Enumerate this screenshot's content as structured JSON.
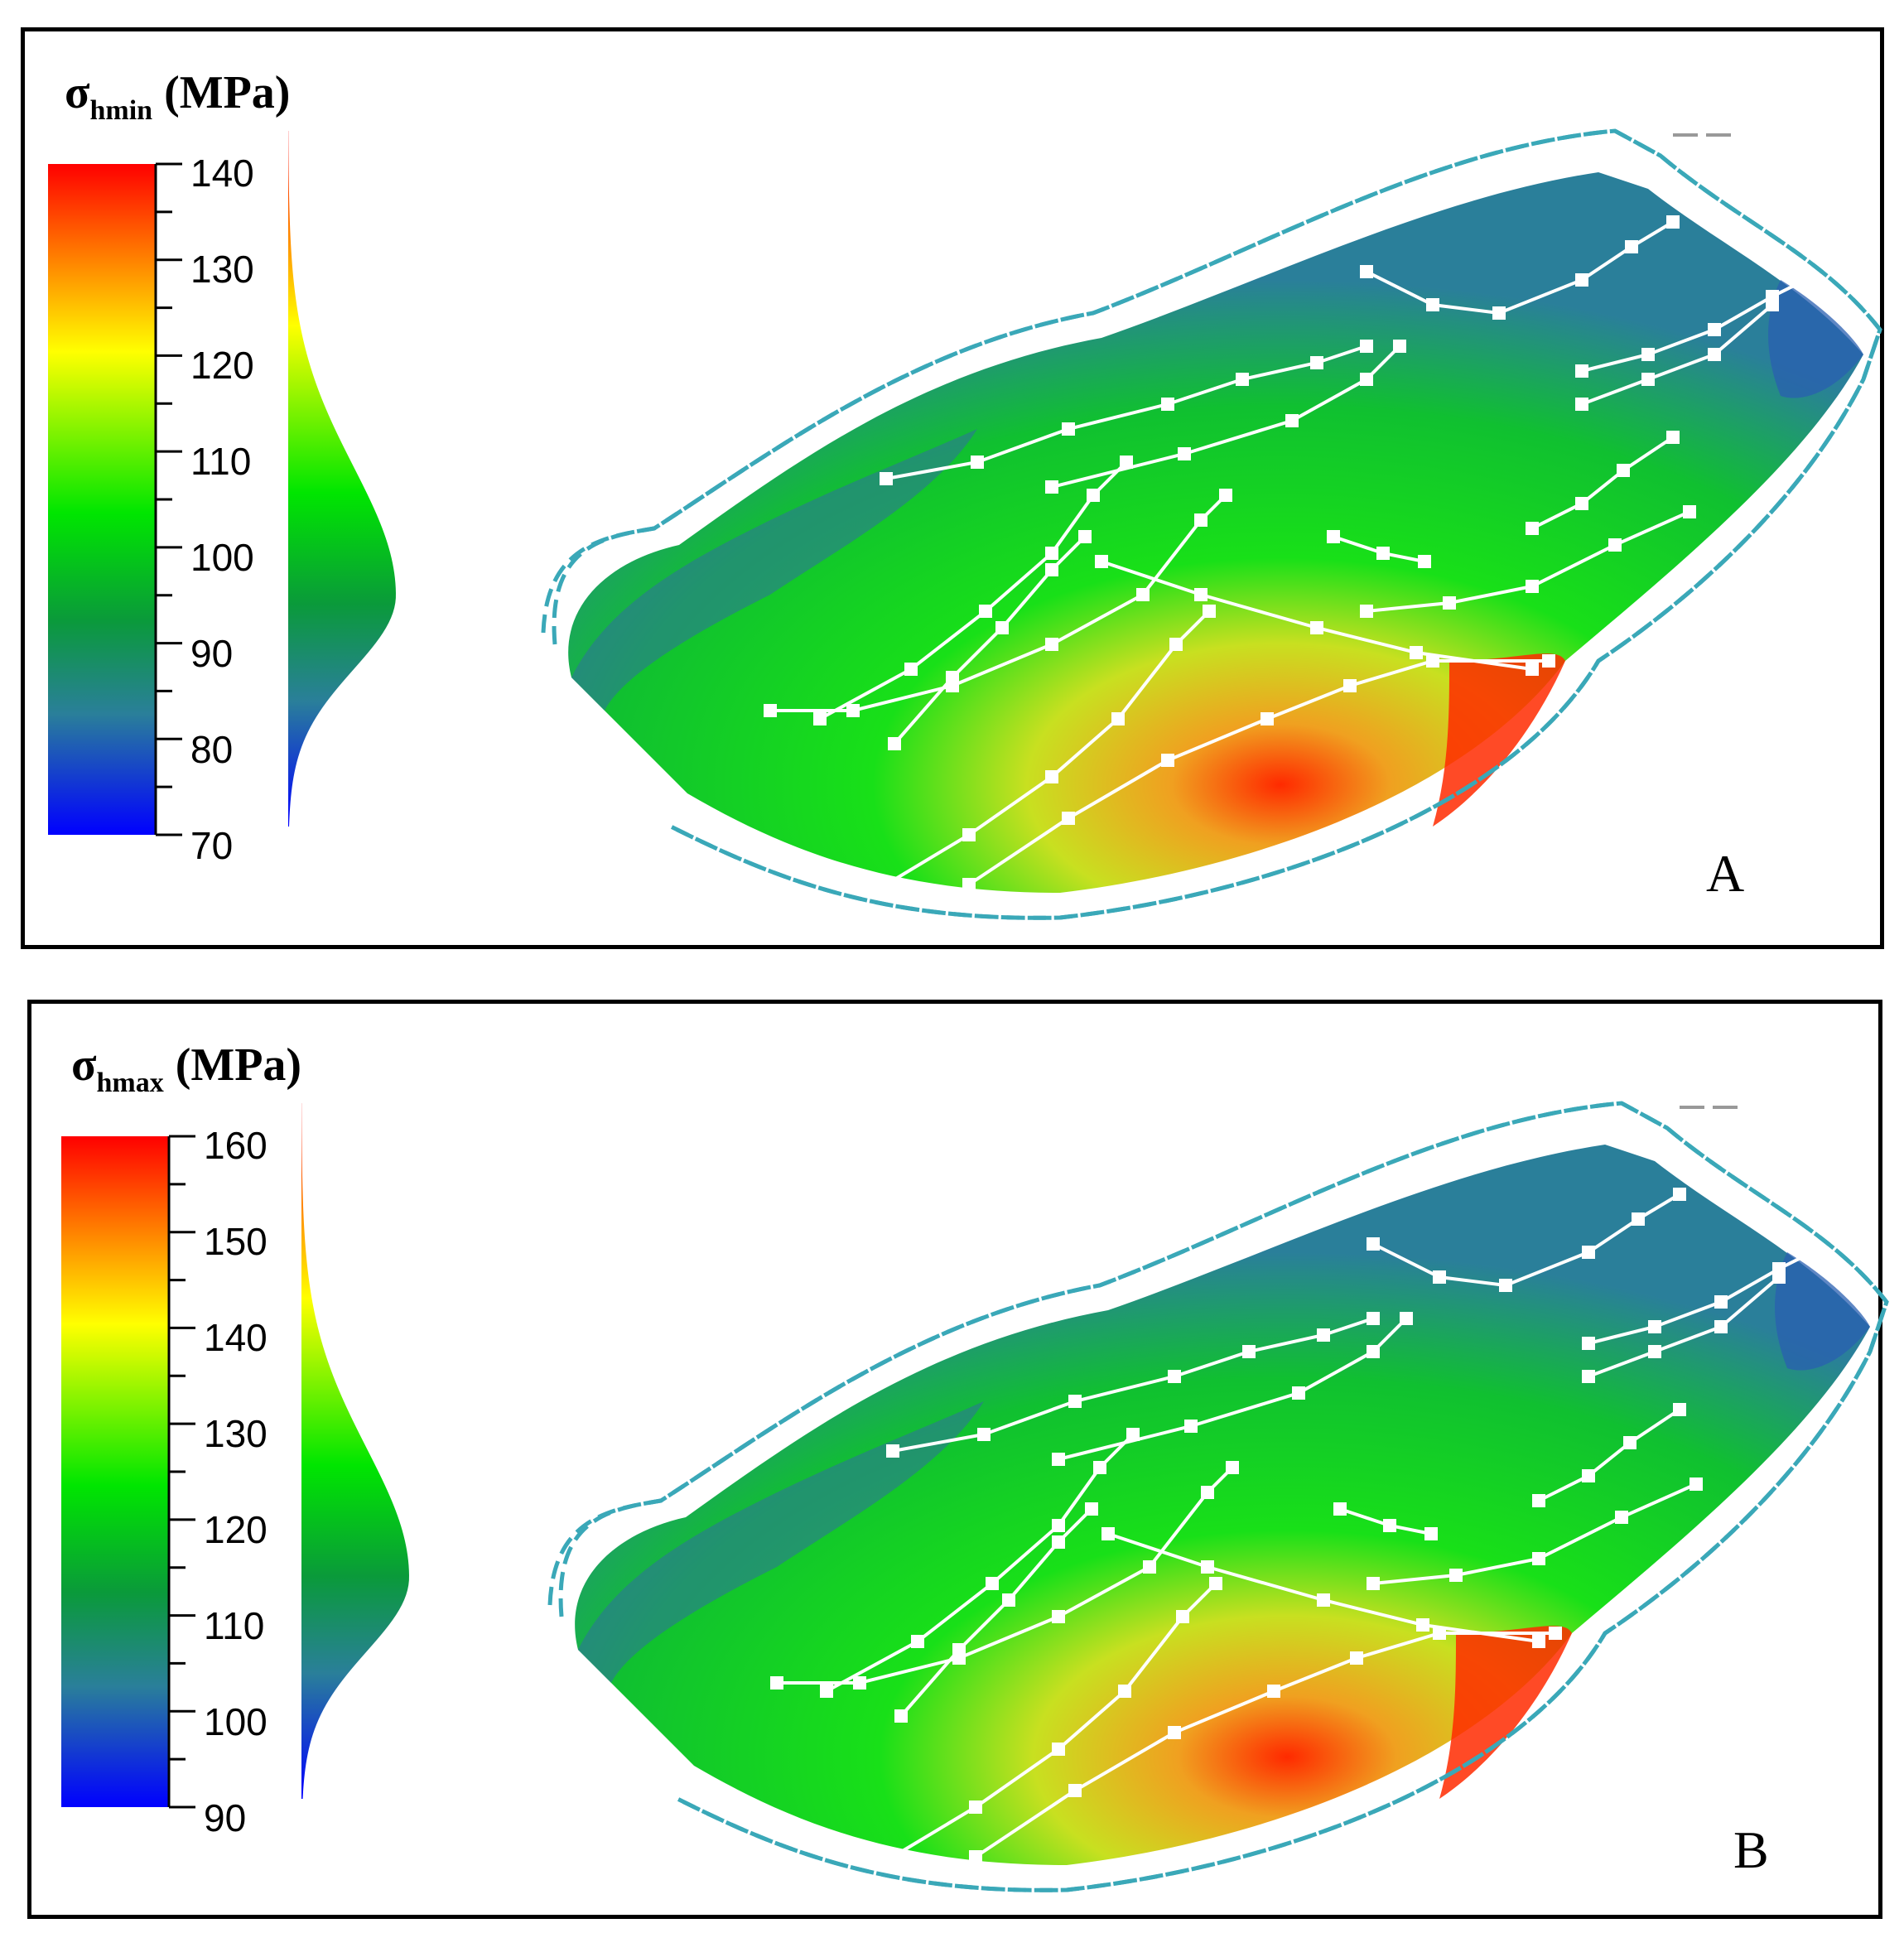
{
  "panels": [
    {
      "id": "A",
      "letter": "A",
      "title_main": "σ",
      "title_sub": "hmin",
      "title_unit": " (MPa)",
      "colorbar": {
        "min": 70,
        "max": 140,
        "ticks": [
          "140",
          "130",
          "120",
          "110",
          "100",
          "90",
          "80",
          "70"
        ]
      },
      "histogram_peak_value": 95
    },
    {
      "id": "B",
      "letter": "B",
      "title_main": "σ",
      "title_sub": "hmax",
      "title_unit": " (MPa)",
      "colorbar": {
        "min": 90,
        "max": 160,
        "ticks": [
          "160",
          "150",
          "140",
          "130",
          "120",
          "110",
          "100",
          "90"
        ]
      },
      "histogram_peak_value": 114
    }
  ],
  "colors": {
    "low": "#0000ff",
    "mid_low": "#2a7f9a",
    "mid": "#00e600",
    "mid_high": "#ffff00",
    "high": "#ff0000",
    "boundary_dash": "#3aa8b8",
    "well_path": "#ffffff"
  }
}
